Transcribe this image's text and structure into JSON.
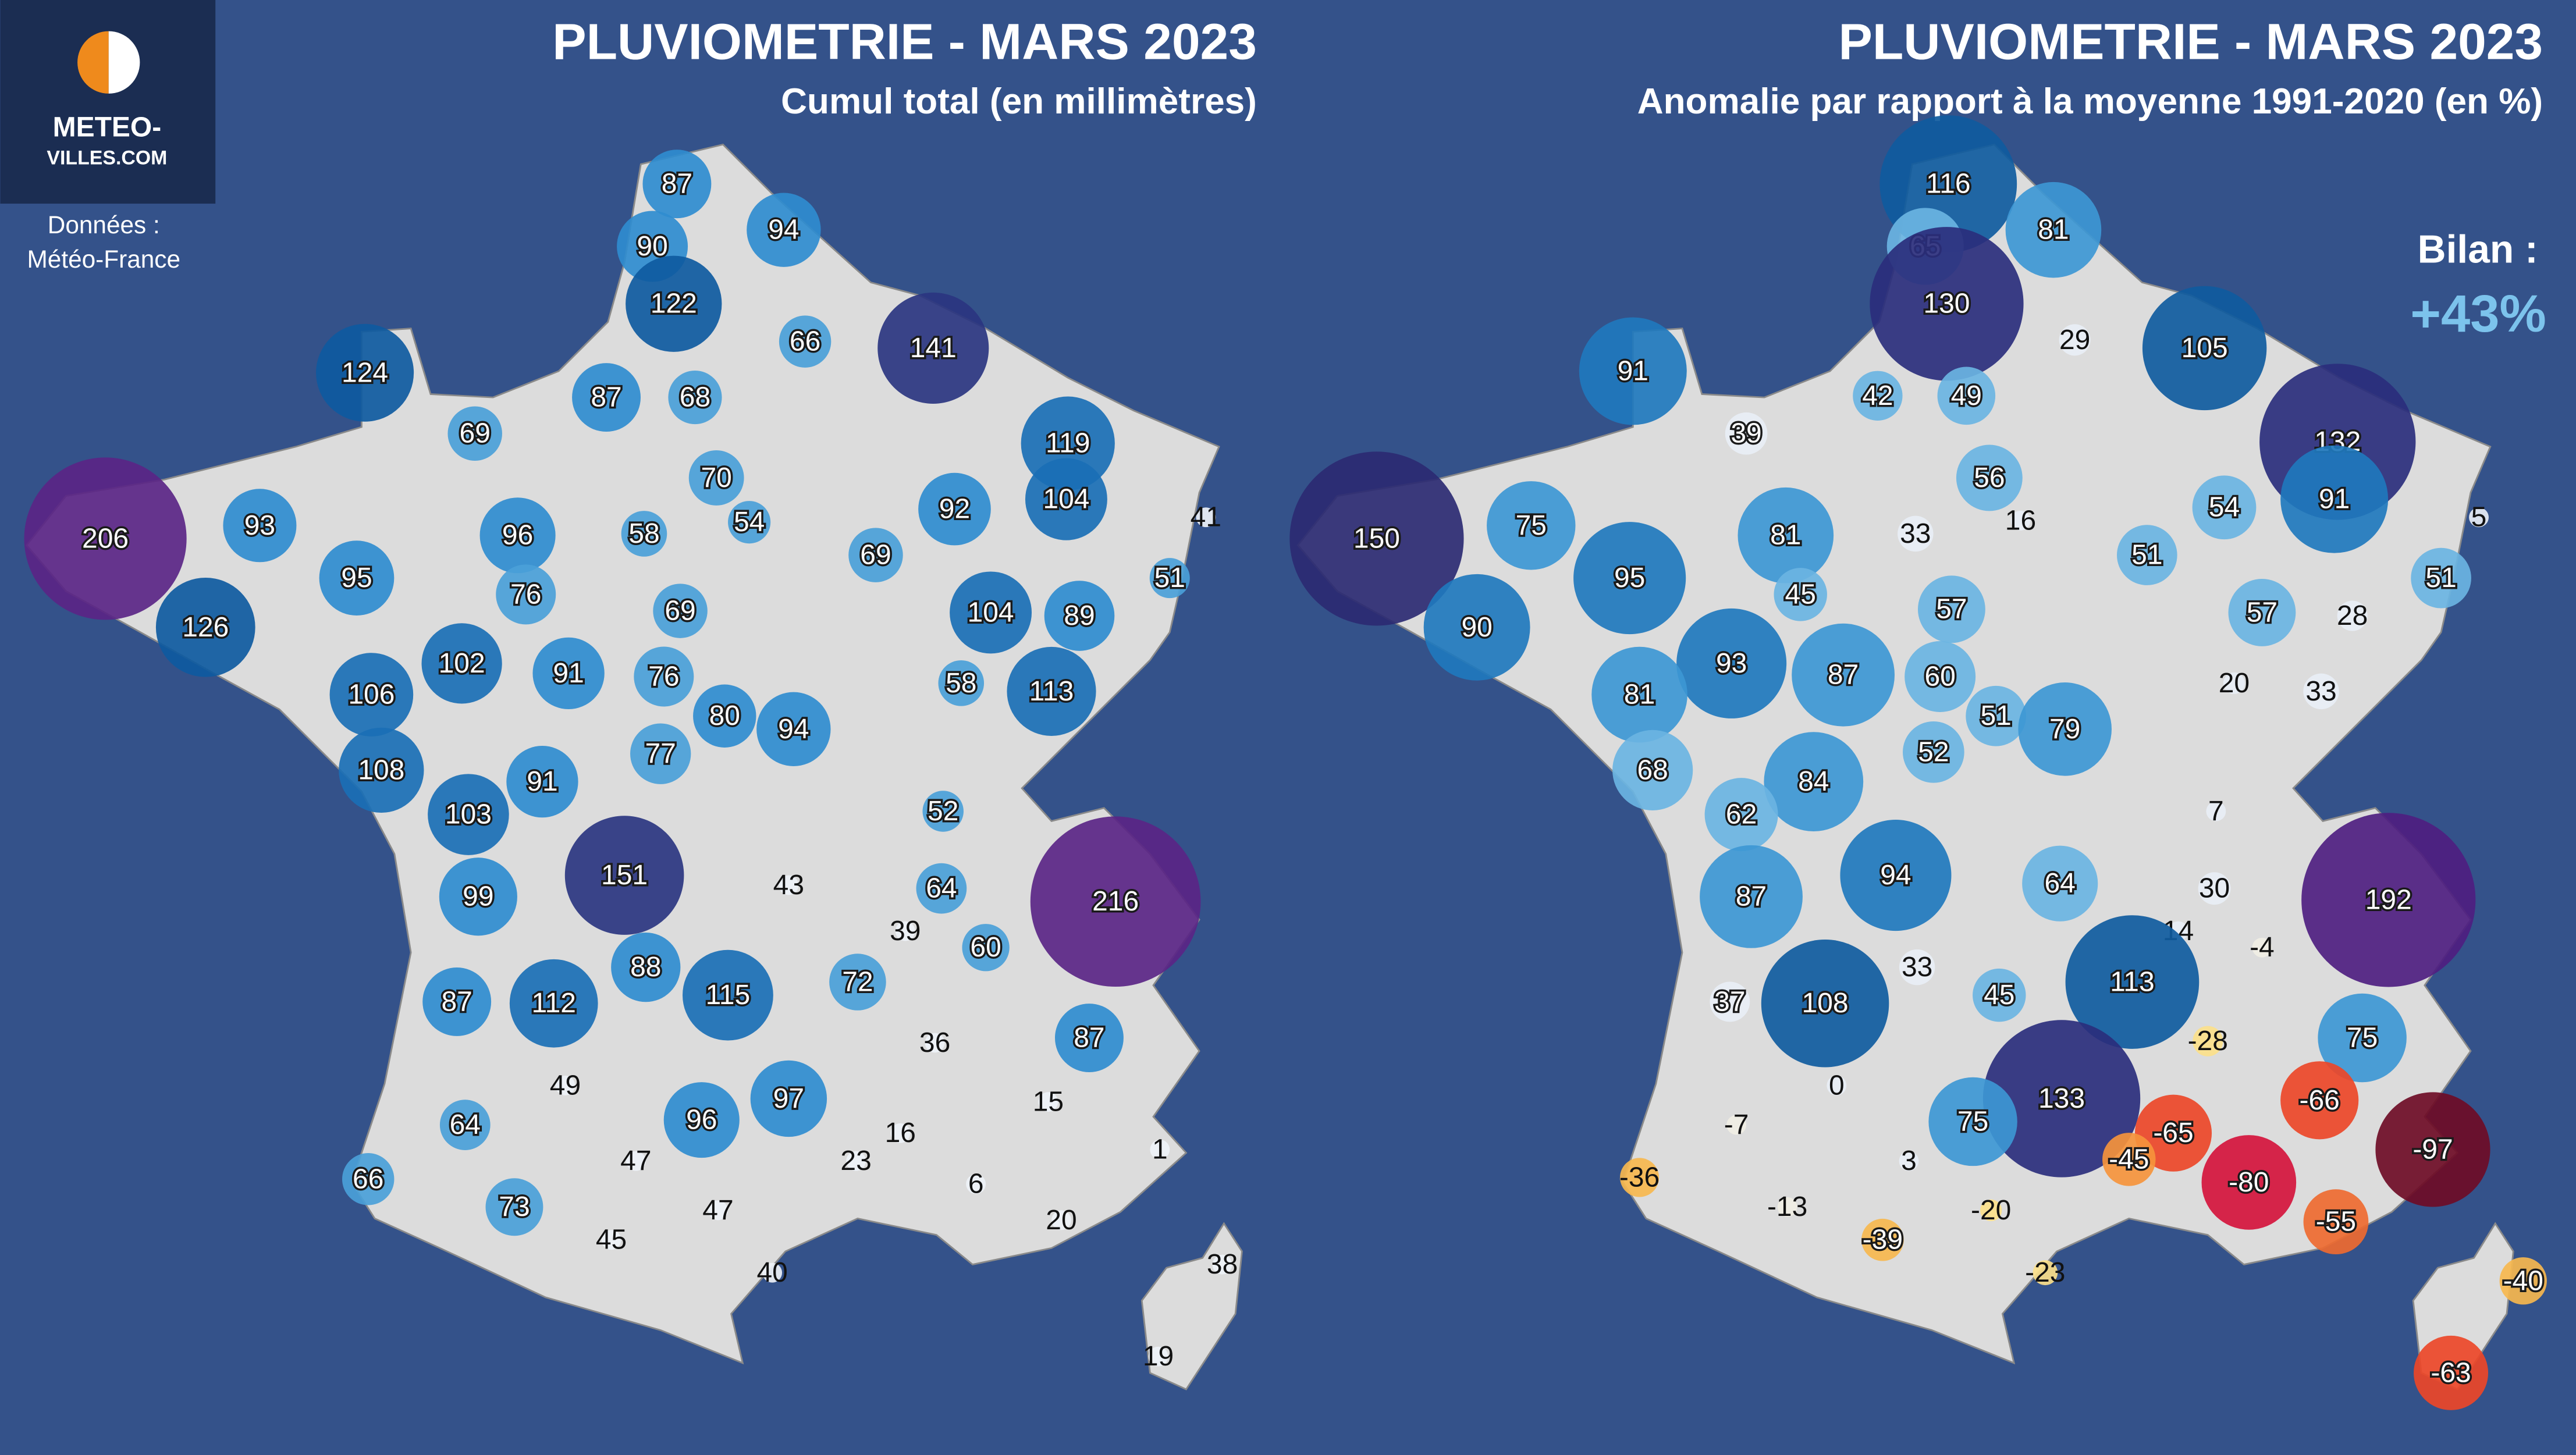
{
  "logo": {
    "line1": "METEO-",
    "line2": "VILLES.COM"
  },
  "source": {
    "line1": "Données :",
    "line2": "Météo-France"
  },
  "maps": [
    {
      "title": "PLUVIOMETRIE - MARS 2023",
      "subtitle": "Cumul total (en millimètres)",
      "values": [
        87,
        94,
        90,
        122,
        66,
        141,
        124,
        87,
        68,
        69,
        119,
        206,
        93,
        96,
        58,
        70,
        54,
        92,
        104,
        41,
        69,
        95,
        76,
        51,
        126,
        69,
        104,
        89,
        102,
        91,
        76,
        106,
        80,
        94,
        58,
        113,
        77,
        108,
        91,
        103,
        52,
        151,
        99,
        43,
        64,
        216,
        39,
        60,
        87,
        112,
        88,
        115,
        72,
        36,
        87,
        49,
        15,
        64,
        96,
        97,
        16,
        1,
        66,
        47,
        23,
        6,
        73,
        47,
        20,
        45,
        40,
        38,
        19
      ]
    },
    {
      "title": "PLUVIOMETRIE - MARS 2023",
      "subtitle": "Anomalie par rapport à la moyenne 1991-2020 (en %)",
      "summary_label": "Bilan :",
      "summary": "+43%",
      "values": [
        116,
        81,
        65,
        130,
        29,
        105,
        91,
        42,
        49,
        39,
        132,
        150,
        75,
        81,
        33,
        56,
        16,
        54,
        91,
        5,
        51,
        95,
        45,
        51,
        90,
        57,
        57,
        28,
        93,
        87,
        60,
        81,
        51,
        79,
        20,
        33,
        52,
        68,
        84,
        62,
        7,
        94,
        87,
        64,
        30,
        192,
        14,
        -4,
        37,
        108,
        33,
        45,
        113,
        -28,
        75,
        0,
        133,
        -66,
        -65,
        75,
        -7,
        -45,
        -97,
        -80,
        3,
        -36,
        -13,
        -20,
        -55,
        -39,
        -23,
        -40,
        -63
      ]
    }
  ]
}
